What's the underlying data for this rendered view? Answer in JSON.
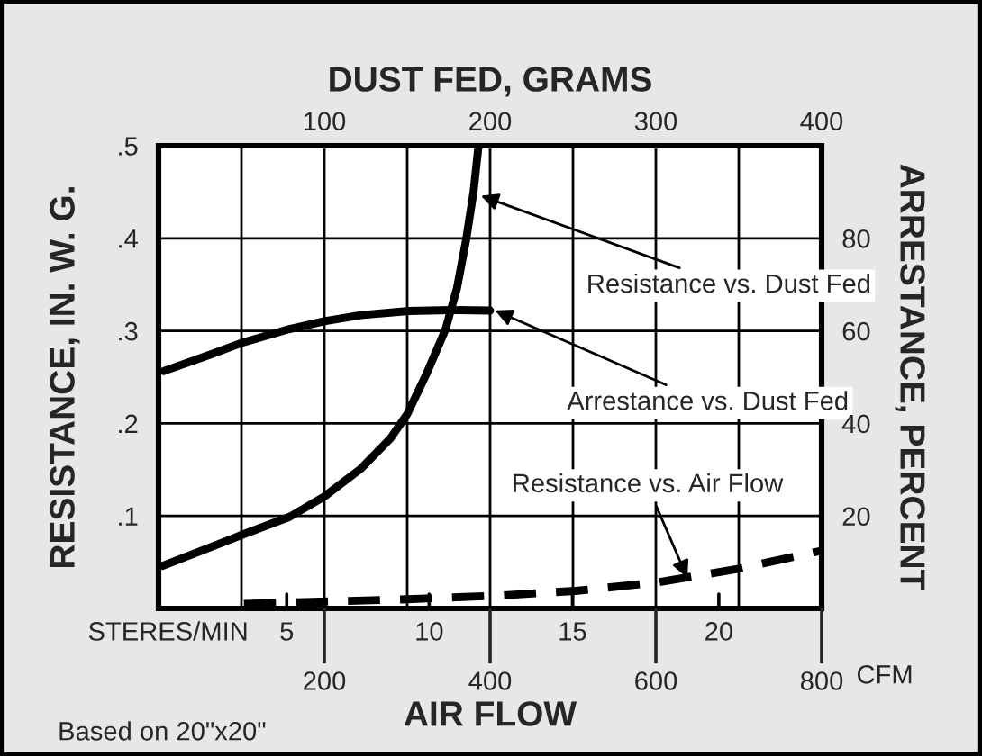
{
  "chart_data": {
    "type": "line",
    "xlabel": "DUST FED, GRAMS",
    "x2label": "AIR FLOW",
    "ylabel": "RESISTANCE, IN. W. G.",
    "y2label": "ARRESTANCE, PERCENT",
    "xlim": [
      0,
      400
    ],
    "xticks": [
      {
        "value": 50,
        "label": null
      },
      100,
      {
        "value": 150,
        "label": null
      },
      200,
      {
        "value": 250,
        "label": null
      },
      300,
      {
        "value": 350,
        "label": null
      },
      400
    ],
    "x2lim": [
      0,
      800
    ],
    "x2ticks": [
      200,
      400,
      600,
      800
    ],
    "ylim": [
      0,
      0.5
    ],
    "yticks": [
      {
        "value": 0.1,
        "label": ".1"
      },
      {
        "value": 0.2,
        "label": ".2"
      },
      {
        "value": 0.3,
        "label": ".3"
      },
      {
        "value": 0.4,
        "label": ".4"
      },
      {
        "value": 0.5,
        "label": ".5"
      }
    ],
    "y2lim": [
      0,
      100
    ],
    "y2ticks": [
      20,
      40,
      60,
      80
    ],
    "grid": true,
    "marker": "none",
    "series": [
      {
        "color": "#000000",
        "line_style": "solid",
        "x": [
          2.5,
          51,
          79,
          100,
          122,
          140,
          150,
          162,
          173,
          180,
          185.5,
          190,
          193
        ],
        "values": [
          0.046,
          0.08,
          0.099,
          0.121,
          0.151,
          0.184,
          0.21,
          0.255,
          0.301,
          0.346,
          0.398,
          0.45,
          0.5
        ]
      },
      {
        "color": "#000000",
        "axis": "y2",
        "line_style": "solid",
        "x": [
          3,
          31.5,
          51,
          79,
          100,
          122,
          151,
          176,
          200
        ],
        "values": [
          51.3,
          54.9,
          57.5,
          60.4,
          62.1,
          63.4,
          64.3,
          64.5,
          64.4
        ]
      },
      {
        "color": "#000000",
        "axis": "x2",
        "line_style": "dashed",
        "x": [
          103,
          186,
          300,
          413,
          503,
          601,
          700,
          798
        ],
        "values": [
          0.005,
          0.007,
          0.01,
          0.014,
          0.019,
          0.028,
          0.043,
          0.062
        ]
      }
    ],
    "annotations": [
      {
        "text": "Resistance vs. Dust Fed",
        "x": 194.5,
        "y": 0.446
      },
      {
        "text": "Arrestance vs. Dust Fed",
        "x": 203,
        "y": 0.322
      },
      {
        "text": "Resistance vs. Air Flow",
        "x": 319,
        "y": 0.033
      },
      "STERES/MIN",
      "5",
      "10",
      "15",
      "20",
      "CFM",
      "Based on 20\"x20\""
    ]
  }
}
